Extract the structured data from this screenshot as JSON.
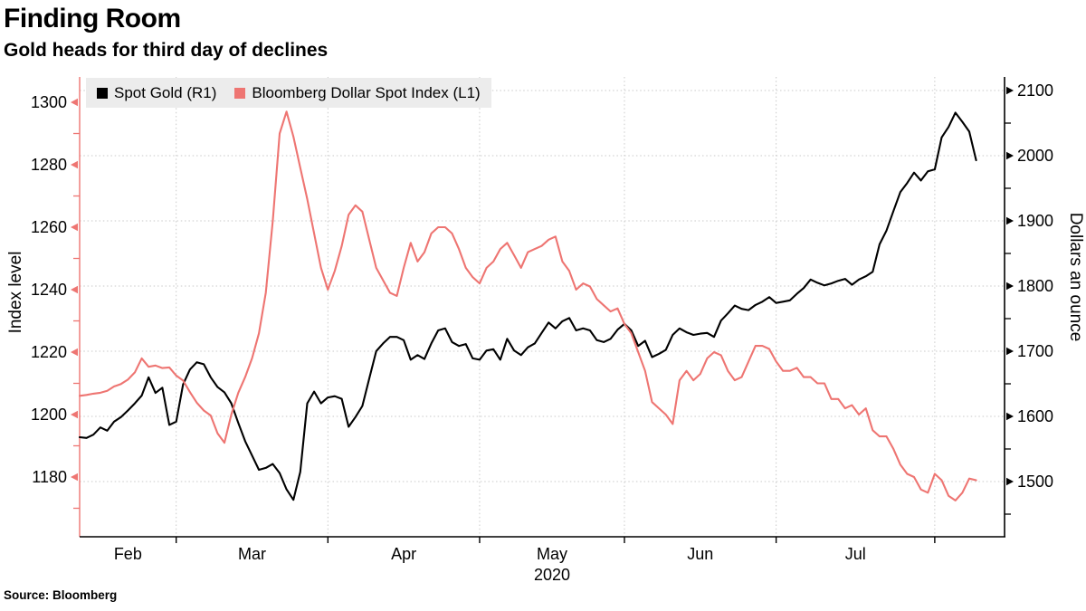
{
  "header": {
    "title": "Finding Room",
    "subtitle": "Gold heads for third day of declines"
  },
  "source_label": "Source: Bloomberg",
  "legend": {
    "items": [
      {
        "label": "Spot Gold (R1)",
        "color": "#000000"
      },
      {
        "label": "Bloomberg Dollar Spot Index (L1)",
        "color": "#ee7572"
      }
    ]
  },
  "colors": {
    "gold_line": "#000000",
    "dollar_line": "#ee7572",
    "gridline": "#c9c9c9",
    "legend_bg": "#ececec",
    "background": "#ffffff"
  },
  "chart_data": {
    "type": "line",
    "title": "Finding Room",
    "subtitle": "Gold heads for third day of declines",
    "x_axis": {
      "year_label": "2020",
      "year_under_month": "May",
      "months": [
        {
          "label": "Feb",
          "center_index": 7
        },
        {
          "label": "Mar",
          "center_index": 25
        },
        {
          "label": "Apr",
          "center_index": 47
        },
        {
          "label": "May",
          "center_index": 68.5
        },
        {
          "label": "Jun",
          "center_index": 90
        },
        {
          "label": "Jul",
          "center_index": 112.5
        }
      ],
      "tick_indices": [
        14,
        36,
        58,
        79,
        101,
        124
      ],
      "n_points": 131
    },
    "left_axis": {
      "label": "Index level",
      "ticks": [
        1180,
        1200,
        1220,
        1240,
        1260,
        1280,
        1300
      ],
      "minor_ticks": [
        1170,
        1190,
        1210,
        1230,
        1250,
        1270,
        1290
      ],
      "range": [
        1160,
        1310
      ],
      "color": "#ee7572"
    },
    "right_axis": {
      "label": "Dollars an ounce",
      "ticks": [
        1500,
        1600,
        1700,
        1800,
        1900,
        2000,
        2100
      ],
      "minor_ticks": [
        1450,
        1550,
        1650,
        1750,
        1850,
        1950,
        2050
      ],
      "range": [
        1430,
        2110
      ],
      "color": "#000000"
    },
    "gridlines": {
      "horizontal": "right_axis_ticks",
      "vertical": "month_ticks",
      "style": "dotted"
    },
    "legend_position": "top-left-inside",
    "series": [
      {
        "name": "Spot Gold (R1)",
        "axis": "right",
        "color": "#000000",
        "values": [
          1568,
          1567,
          1572,
          1583,
          1578,
          1592,
          1599,
          1609,
          1620,
          1632,
          1660,
          1636,
          1644,
          1587,
          1592,
          1649,
          1672,
          1683,
          1680,
          1660,
          1645,
          1637,
          1620,
          1590,
          1562,
          1540,
          1518,
          1521,
          1527,
          1513,
          1488,
          1472,
          1515,
          1620,
          1638,
          1620,
          1629,
          1631,
          1627,
          1584,
          1599,
          1616,
          1658,
          1700,
          1712,
          1722,
          1722,
          1717,
          1687,
          1694,
          1688,
          1712,
          1732,
          1735,
          1714,
          1708,
          1711,
          1689,
          1687,
          1701,
          1703,
          1687,
          1719,
          1701,
          1694,
          1706,
          1712,
          1728,
          1744,
          1735,
          1746,
          1751,
          1732,
          1735,
          1732,
          1717,
          1714,
          1719,
          1733,
          1742,
          1732,
          1708,
          1716,
          1691,
          1696,
          1702,
          1725,
          1735,
          1729,
          1725,
          1727,
          1728,
          1722,
          1747,
          1758,
          1770,
          1765,
          1763,
          1771,
          1776,
          1783,
          1774,
          1776,
          1778,
          1788,
          1797,
          1810,
          1805,
          1801,
          1804,
          1808,
          1811,
          1802,
          1810,
          1815,
          1822,
          1864,
          1885,
          1915,
          1944,
          1958,
          1974,
          1962,
          1976,
          1979,
          2028,
          2044,
          2066,
          2052,
          2037,
          1993
        ]
      },
      {
        "name": "Bloomberg Dollar Spot Index (L1)",
        "axis": "left",
        "color": "#ee7572",
        "values": [
          1206,
          1206.3,
          1206.7,
          1207,
          1207.6,
          1209,
          1209.8,
          1211.2,
          1213.5,
          1218,
          1215.3,
          1215.7,
          1214.9,
          1215.1,
          1212.5,
          1210.9,
          1207.2,
          1203.8,
          1201.3,
          1199.7,
          1194,
          1191,
          1200,
          1207,
          1212,
          1218,
          1226,
          1239,
          1262,
          1290,
          1297,
          1289,
          1279,
          1269,
          1258,
          1247,
          1240,
          1246,
          1254,
          1264,
          1267,
          1265,
          1256,
          1247,
          1243,
          1239,
          1238,
          1247,
          1255,
          1249,
          1252,
          1258,
          1260,
          1260,
          1258,
          1253,
          1247,
          1244,
          1242,
          1247,
          1249,
          1253,
          1255,
          1251,
          1247,
          1252,
          1253,
          1254,
          1256,
          1257,
          1249,
          1246,
          1240,
          1242,
          1241,
          1237,
          1235,
          1233,
          1234,
          1229,
          1226,
          1220,
          1214,
          1204,
          1202,
          1200,
          1197,
          1211,
          1214,
          1211,
          1213,
          1218,
          1220,
          1219,
          1214,
          1211,
          1212,
          1217,
          1222,
          1222,
          1221,
          1217,
          1214,
          1214,
          1215,
          1212,
          1212,
          1210,
          1210,
          1205,
          1205,
          1202,
          1203,
          1200,
          1202,
          1195,
          1193,
          1193,
          1189,
          1184,
          1181,
          1180,
          1176,
          1175,
          1181,
          1179,
          1174,
          1172.5,
          1175,
          1179.5,
          1179
        ]
      }
    ]
  }
}
